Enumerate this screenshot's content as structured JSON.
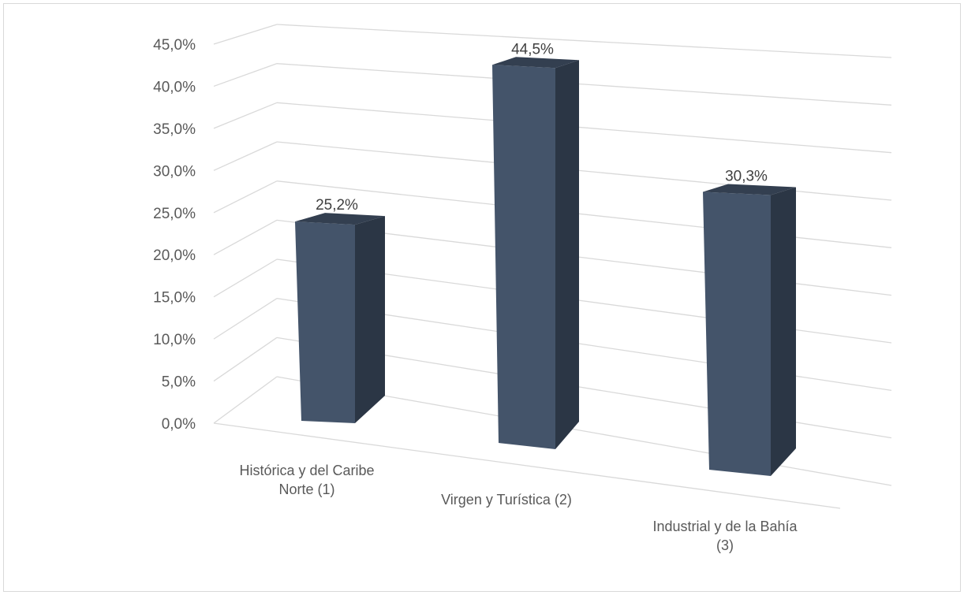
{
  "chart_data": {
    "type": "bar",
    "title": "",
    "xlabel": "",
    "ylabel": "",
    "categories": [
      [
        "Histórica y del Caribe",
        "Norte (1)"
      ],
      [
        "Virgen y Turística (2)"
      ],
      [
        "Industrial y de la Bahía",
        "(3)"
      ]
    ],
    "values": [
      25.2,
      44.5,
      30.3
    ],
    "data_labels": [
      "25,2%",
      "44,5%",
      "30,3%"
    ],
    "ylim": [
      0,
      45
    ],
    "y_ticks": [
      "0,0%",
      "5,0%",
      "10,0%",
      "15,0%",
      "20,0%",
      "25,0%",
      "30,0%",
      "35,0%",
      "40,0%",
      "45,0%"
    ],
    "y_tick_step": 5,
    "grid": true,
    "legend": "none",
    "three_d": true,
    "colors": {
      "bar_front": "#44546a",
      "bar_side": "#2b3645",
      "bar_top": "#333f50",
      "grid": "#d9d9d9",
      "text": "#595959"
    }
  }
}
